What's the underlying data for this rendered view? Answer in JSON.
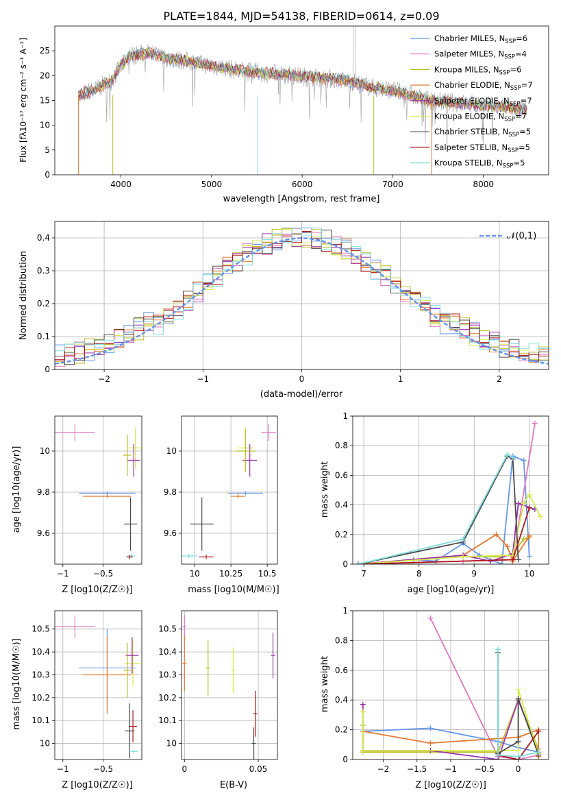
{
  "figure": {
    "title": "PLATE=1844, MJD=54138, FIBERID=0614, z=0.09",
    "colors": {
      "Chabrier MILES": "#6495ed",
      "Salpeter MILES": "#e377c2",
      "Kroupa MILES": "#bcbd22",
      "Chabrier ELODIE": "#e8772e",
      "Salpeter ELODIE": "#9b30b0",
      "Kroupa ELODIE": "#d4ec4c",
      "Chabrier STELIB": "#4a4a4a",
      "Salpeter STELIB": "#b01414",
      "Kroupa STELIB": "#7fdcdc"
    }
  },
  "chart_data": [
    {
      "id": "spectrum",
      "type": "line",
      "xlabel": "wavelength [Angstrom, rest frame]",
      "ylabel": "Flux [fλ10⁻¹⁷ erg cm⁻² s⁻¹ A⁻¹]",
      "xlim": [
        3270,
        8720
      ],
      "ylim": [
        0,
        30
      ],
      "xticks": [
        4000,
        5000,
        6000,
        7000,
        8000
      ],
      "yticks": [
        0,
        5,
        10,
        15,
        20,
        25
      ],
      "grid": false,
      "legend_position": "top-right",
      "data_color": "#aaaaaa",
      "continuum_x": [
        3530,
        3700,
        3900,
        4000,
        4100,
        4300,
        4500,
        4700,
        5000,
        5300,
        5600,
        5900,
        6200,
        6500,
        6800,
        7000,
        7200,
        7400,
        7700,
        8000,
        8300,
        8480
      ],
      "continuum_y": [
        16,
        17,
        19,
        22,
        24,
        24.5,
        23.5,
        23,
        22,
        21,
        20.5,
        20,
        19.5,
        19,
        17.5,
        17,
        16,
        15,
        14.5,
        14,
        13.5,
        13
      ],
      "spike_x": [
        3530,
        3910,
        5510,
        6790,
        7430
      ],
      "series": [
        {
          "name": "Chabrier MILES",
          "nssp": "6"
        },
        {
          "name": "Salpeter MILES",
          "nssp": "4"
        },
        {
          "name": "Kroupa MILES",
          "nssp": "6"
        },
        {
          "name": "Chabrier ELODIE",
          "nssp": "7"
        },
        {
          "name": "Salpeter ELODIE",
          "nssp": "7"
        },
        {
          "name": "Kroupa ELODIE",
          "nssp": "7"
        },
        {
          "name": "Chabrier STELIB",
          "nssp": "5"
        },
        {
          "name": "Salpeter STELIB",
          "nssp": "5"
        },
        {
          "name": "Kroupa STELIB",
          "nssp": "5"
        }
      ]
    },
    {
      "id": "residuals",
      "type": "line",
      "xlabel": "(data-model)/error",
      "ylabel": "Normed distribution",
      "xlim": [
        -2.5,
        2.5
      ],
      "ylim": [
        0,
        0.45
      ],
      "xticks": [
        -2,
        -1,
        0,
        1,
        2
      ],
      "yticks": [
        0.0,
        0.1,
        0.2,
        0.3,
        0.4
      ],
      "grid": true,
      "gaussian_label": "𝒩(0,1)",
      "gaussian_color": "#6495ed",
      "bin_width": 0.1
    },
    {
      "id": "age-vs-Z",
      "type": "scatter",
      "xlabel": "Z [log10(Z/Z☉)]",
      "ylabel": "age [log10(age/yr)]",
      "xlim": [
        -1.1,
        -0.02
      ],
      "ylim": [
        9.45,
        10.17
      ],
      "xticks": [
        -1.0,
        -0.5
      ],
      "yticks": [
        9.6,
        9.8,
        10.0
      ],
      "grid": true,
      "points": [
        {
          "series": "Salpeter MILES",
          "x": -0.85,
          "y": 10.09,
          "xerr": 0.25,
          "yerr": 0.04
        },
        {
          "series": "Chabrier MILES",
          "x": -0.45,
          "y": 9.795,
          "xerr": 0.35,
          "yerr": 0.0
        },
        {
          "series": "Chabrier ELODIE",
          "x": -0.45,
          "y": 9.78,
          "xerr": 0.3,
          "yerr": 0.0
        },
        {
          "series": "Kroupa ELODIE",
          "x": -0.1,
          "y": 10.015,
          "xerr": 0.1,
          "yerr": 0.1
        },
        {
          "series": "Salpeter ELODIE",
          "x": -0.12,
          "y": 9.955,
          "xerr": 0.08,
          "yerr": 0.08
        },
        {
          "series": "Kroupa MILES",
          "x": -0.2,
          "y": 9.98,
          "xerr": 0.05,
          "yerr": 0.1
        },
        {
          "series": "Chabrier STELIB",
          "x": -0.16,
          "y": 9.645,
          "xerr": 0.08,
          "yerr": 0.13
        },
        {
          "series": "Kroupa STELIB",
          "x": -0.15,
          "y": 9.49,
          "xerr": 0.05,
          "yerr": 0.0
        },
        {
          "series": "Salpeter STELIB",
          "x": -0.17,
          "y": 9.485,
          "xerr": 0.04,
          "yerr": 0.0
        }
      ]
    },
    {
      "id": "age-vs-mass",
      "type": "scatter",
      "xlabel": "mass [log10(M/M☉)]",
      "ylabel": "",
      "xlim": [
        9.91,
        10.57
      ],
      "ylim": [
        9.45,
        10.17
      ],
      "xticks": [
        10.0,
        10.25,
        10.5
      ],
      "yticks": [
        9.6,
        9.8,
        10.0
      ],
      "grid": true,
      "points": [
        {
          "series": "Salpeter MILES",
          "x": 10.51,
          "y": 10.09,
          "xerr": 0.05,
          "yerr": 0.04
        },
        {
          "series": "Chabrier MILES",
          "x": 10.35,
          "y": 9.795,
          "xerr": 0.12,
          "yerr": 0.0
        },
        {
          "series": "Chabrier ELODIE",
          "x": 10.3,
          "y": 9.78,
          "xerr": 0.05,
          "yerr": 0.0
        },
        {
          "series": "Kroupa ELODIE",
          "x": 10.35,
          "y": 10.015,
          "xerr": 0.05,
          "yerr": 0.1
        },
        {
          "series": "Salpeter ELODIE",
          "x": 10.38,
          "y": 9.955,
          "xerr": 0.05,
          "yerr": 0.08
        },
        {
          "series": "Kroupa MILES",
          "x": 10.35,
          "y": 10.0,
          "xerr": 0.07,
          "yerr": 0.1
        },
        {
          "series": "Chabrier STELIB",
          "x": 10.05,
          "y": 9.645,
          "xerr": 0.08,
          "yerr": 0.13
        },
        {
          "series": "Kroupa STELIB",
          "x": 9.96,
          "y": 9.49,
          "xerr": 0.06,
          "yerr": 0.0
        },
        {
          "series": "Salpeter STELIB",
          "x": 10.08,
          "y": 9.485,
          "xerr": 0.05,
          "yerr": 0.0
        }
      ]
    },
    {
      "id": "weight-vs-age",
      "type": "line",
      "xlabel": "age [log10(age/yr)]",
      "ylabel": "mass weight",
      "xlim": [
        6.8,
        10.35
      ],
      "ylim": [
        0,
        1.0
      ],
      "xticks": [
        7,
        8,
        9,
        10
      ],
      "yticks": [
        0.0,
        0.2,
        0.4,
        0.6,
        0.8,
        1.0
      ],
      "grid": true,
      "series": [
        {
          "name": "Chabrier MILES",
          "x": [
            6.9,
            7.9,
            8.3,
            8.8,
            9.1,
            9.5,
            9.7,
            9.9,
            10.0
          ],
          "y": [
            0.0,
            0.03,
            0.02,
            0.14,
            0.06,
            0.0,
            0.73,
            0.7,
            0.05
          ]
        },
        {
          "name": "Salpeter MILES",
          "x": [
            6.9,
            8.8,
            9.7,
            10.1
          ],
          "y": [
            0.0,
            0.02,
            0.03,
            0.95
          ]
        },
        {
          "name": "Kroupa MILES",
          "x": [
            6.9,
            8.8,
            9.5,
            9.7,
            9.9,
            10.0
          ],
          "y": [
            0.0,
            0.05,
            0.05,
            0.07,
            0.17,
            0.18
          ]
        },
        {
          "name": "Chabrier ELODIE",
          "x": [
            6.9,
            8.8,
            9.4,
            9.6,
            9.7,
            10.0
          ],
          "y": [
            0.0,
            0.06,
            0.2,
            0.12,
            0.02,
            0.19
          ]
        },
        {
          "name": "Salpeter ELODIE",
          "x": [
            6.9,
            8.8,
            9.3,
            9.7,
            9.8,
            10.1
          ],
          "y": [
            0.0,
            0.06,
            0.02,
            0.07,
            0.41,
            0.37
          ]
        },
        {
          "name": "Kroupa ELODIE",
          "x": [
            6.9,
            8.8,
            9.7,
            9.9,
            10.0,
            10.2
          ],
          "y": [
            0.0,
            0.05,
            0.06,
            0.41,
            0.47,
            0.32
          ]
        },
        {
          "name": "Chabrier STELIB",
          "x": [
            6.9,
            8.8,
            9.6,
            9.7,
            9.8
          ],
          "y": [
            0.0,
            0.15,
            0.73,
            0.71,
            0.03
          ]
        },
        {
          "name": "Salpeter STELIB",
          "x": [
            6.9,
            9.7,
            10.0
          ],
          "y": [
            0.0,
            0.03,
            0.38
          ]
        },
        {
          "name": "Kroupa STELIB",
          "x": [
            6.9,
            8.8,
            9.6,
            9.7
          ],
          "y": [
            0.0,
            0.17,
            0.74,
            0.72
          ]
        }
      ]
    },
    {
      "id": "mass-vs-Z",
      "type": "scatter",
      "xlabel": "Z [log10(Z/Z☉)]",
      "ylabel": "mass [log10(M/M☉)]",
      "xlim": [
        -1.1,
        -0.02
      ],
      "ylim": [
        9.93,
        10.58
      ],
      "xticks": [
        -1.0,
        -0.5
      ],
      "yticks": [
        10.0,
        10.1,
        10.2,
        10.3,
        10.4,
        10.5
      ],
      "grid": true,
      "points": [
        {
          "series": "Salpeter MILES",
          "x": -0.85,
          "y": 10.51,
          "xerr": 0.25,
          "yerr": 0.05
        },
        {
          "series": "Chabrier MILES",
          "x": -0.45,
          "y": 10.33,
          "xerr": 0.35,
          "yerr": 0.17
        },
        {
          "series": "Chabrier ELODIE",
          "x": -0.45,
          "y": 10.3,
          "xerr": 0.3,
          "yerr": 0.17
        },
        {
          "series": "Kroupa ELODIE",
          "x": -0.13,
          "y": 10.35,
          "xerr": 0.1,
          "yerr": 0.1
        },
        {
          "series": "Salpeter ELODIE",
          "x": -0.14,
          "y": 10.385,
          "xerr": 0.08,
          "yerr": 0.08
        },
        {
          "series": "Kroupa MILES",
          "x": -0.2,
          "y": 10.32,
          "xerr": 0.05,
          "yerr": 0.12
        },
        {
          "series": "Chabrier STELIB",
          "x": -0.17,
          "y": 10.055,
          "xerr": 0.06,
          "yerr": 0.12
        },
        {
          "series": "Salpeter STELIB",
          "x": -0.13,
          "y": 10.075,
          "xerr": 0.05,
          "yerr": 0.07
        },
        {
          "series": "Kroupa STELIB",
          "x": -0.12,
          "y": 9.965,
          "xerr": 0.05,
          "yerr": 0.0
        }
      ]
    },
    {
      "id": "mass-vs-EBV",
      "type": "scatter",
      "xlabel": "E(B-V)",
      "ylabel": "",
      "xlim": [
        -0.002,
        0.063
      ],
      "ylim": [
        9.93,
        10.58
      ],
      "xticks": [
        0.0,
        0.05
      ],
      "yticks": [
        10.0,
        10.1,
        10.2,
        10.3,
        10.4,
        10.5
      ],
      "grid": true,
      "points": [
        {
          "series": "Salpeter MILES",
          "x": 0.0,
          "y": 10.51,
          "xerr": 0.0,
          "yerr": 0.05
        },
        {
          "series": "Chabrier ELODIE",
          "x": 0.0,
          "y": 10.35,
          "xerr": 0.0,
          "yerr": 0.12
        },
        {
          "series": "Kroupa MILES",
          "x": 0.016,
          "y": 10.33,
          "xerr": 0.0,
          "yerr": 0.12
        },
        {
          "series": "Kroupa ELODIE",
          "x": 0.033,
          "y": 10.32,
          "xerr": 0.0,
          "yerr": 0.1
        },
        {
          "series": "Salpeter STELIB",
          "x": 0.048,
          "y": 10.13,
          "xerr": 0.0,
          "yerr": 0.1
        },
        {
          "series": "Chabrier STELIB",
          "x": 0.047,
          "y": 10.0,
          "xerr": 0.0,
          "yerr": 0.07
        },
        {
          "series": "Salpeter ELODIE",
          "x": 0.06,
          "y": 10.385,
          "xerr": 0.0,
          "yerr": 0.1
        }
      ]
    },
    {
      "id": "weight-vs-Z",
      "type": "line",
      "xlabel": "Z [log10(Z/Z☉)]",
      "ylabel": "mass weight",
      "xlim": [
        -2.45,
        0.45
      ],
      "ylim": [
        0,
        1.0
      ],
      "xticks": [
        -2.0,
        -1.5,
        -1.0,
        -0.5,
        0.0
      ],
      "yticks": [
        0.0,
        0.2,
        0.4,
        0.6,
        0.8,
        1.0
      ],
      "grid": true,
      "series": [
        {
          "name": "Chabrier MILES",
          "x": [
            -2.3,
            -1.3,
            -0.3,
            0.0,
            0.3
          ],
          "y": [
            0.19,
            0.21,
            0.12,
            0.08,
            0.05
          ]
        },
        {
          "name": "Salpeter MILES",
          "x": [
            -1.3,
            -0.3,
            0.0,
            0.3
          ],
          "y": [
            0.95,
            0.02,
            0.0,
            0.03
          ]
        },
        {
          "name": "Kroupa MILES",
          "x": [
            -2.3,
            -2.3,
            -0.3,
            0.0,
            0.3
          ],
          "y": [
            0.23,
            0.05,
            0.05,
            0.4,
            0.07
          ]
        },
        {
          "name": "Chabrier ELODIE",
          "x": [
            -2.3,
            -1.3,
            0.0,
            0.3,
            0.3
          ],
          "y": [
            0.19,
            0.11,
            0.15,
            0.2,
            0.02
          ]
        },
        {
          "name": "Salpeter ELODIE",
          "x": [
            -2.3,
            -2.3,
            -1.3,
            -0.3,
            0.0,
            0.3
          ],
          "y": [
            0.37,
            0.06,
            0.06,
            0.0,
            0.4,
            0.05
          ]
        },
        {
          "name": "Kroupa ELODIE",
          "x": [
            -2.3,
            -2.3,
            0.0,
            0.0,
            0.3
          ],
          "y": [
            0.32,
            0.06,
            0.06,
            0.47,
            0.04
          ]
        },
        {
          "name": "Chabrier STELIB",
          "x": [
            -0.3,
            -0.3,
            0.0,
            0.0,
            0.3
          ],
          "y": [
            0.72,
            0.04,
            0.12,
            0.41,
            0.03
          ]
        },
        {
          "name": "Salpeter STELIB",
          "x": [
            -0.3,
            0.0,
            0.3
          ],
          "y": [
            0.03,
            0.0,
            0.19
          ]
        },
        {
          "name": "Kroupa STELIB",
          "x": [
            -0.3,
            -0.3,
            0.0,
            0.3
          ],
          "y": [
            0.74,
            0.03,
            0.02,
            0.05
          ]
        }
      ]
    }
  ]
}
